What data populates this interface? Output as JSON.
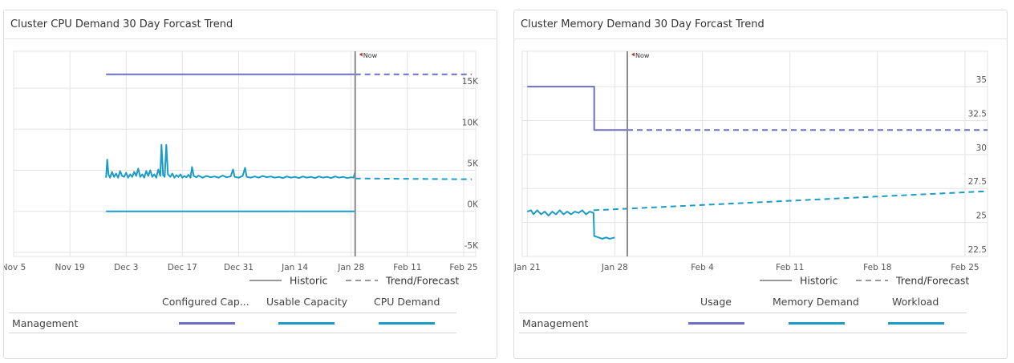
{
  "colors": {
    "purple": "#6c6fc6",
    "teal": "#1a9cc9",
    "grid": "#e3e3e3",
    "now_line": "#8a8a8a",
    "now_marker": "#c0392b"
  },
  "cpu_panel": {
    "title": "Cluster CPU Demand 30 Day Forcast Trend",
    "legend": {
      "historic": "Historic",
      "forecast": "Trend/Forecast"
    },
    "table": {
      "columns": [
        "Configured Cap...",
        "Usable Capacity",
        "CPU Demand"
      ],
      "rows": [
        {
          "label": "Management",
          "swatches": [
            "#6c6fc6",
            "#1a9cc9",
            "#1a9cc9"
          ]
        }
      ]
    }
  },
  "mem_panel": {
    "title": "Cluster Memory Demand 30 Day Forcast Trend",
    "legend": {
      "historic": "Historic",
      "forecast": "Trend/Forecast"
    },
    "table": {
      "columns": [
        "Usage",
        "Memory Demand",
        "Workload"
      ],
      "rows": [
        {
          "label": "Management",
          "swatches": [
            "#6c6fc6",
            "#1a9cc9",
            "#1a9cc9"
          ]
        }
      ]
    }
  },
  "chart_data": [
    {
      "type": "line",
      "title": "Cluster CPU Demand 30 Day Forcast Trend",
      "now_label": "Now",
      "now_x": 85,
      "x_ticks": [
        {
          "x": 0,
          "label": "Nov 5"
        },
        {
          "x": 14,
          "label": "Nov 19"
        },
        {
          "x": 28,
          "label": "Dec 3"
        },
        {
          "x": 42,
          "label": "Dec 17"
        },
        {
          "x": 56,
          "label": "Dec 31"
        },
        {
          "x": 70,
          "label": "Jan 14"
        },
        {
          "x": 84,
          "label": "Jan 28"
        },
        {
          "x": 98,
          "label": "Feb 11"
        },
        {
          "x": 112,
          "label": "Feb 25"
        }
      ],
      "y_ticks": [
        {
          "y": 15000,
          "label": "15K"
        },
        {
          "y": 10000,
          "label": "10K"
        },
        {
          "y": 5000,
          "label": "5K"
        },
        {
          "y": 0,
          "label": "0K"
        },
        {
          "y": -5000,
          "label": "-5K"
        }
      ],
      "xlim": [
        0,
        115
      ],
      "ylim": [
        -5500,
        19500
      ],
      "series": [
        {
          "color": "#6c6fc6",
          "historic": [
            [
              23,
              16700
            ],
            [
              85,
              16700
            ]
          ],
          "forecast": [
            [
              85,
              16700
            ],
            [
              114,
              16700
            ]
          ]
        },
        {
          "color": "#1a9cc9",
          "historic": [
            [
              23,
              0
            ],
            [
              85,
              0
            ]
          ],
          "forecast": []
        },
        {
          "color": "#1a9cc9",
          "historic": [
            [
              23,
              4100
            ],
            [
              23.3,
              6300
            ],
            [
              23.6,
              4500
            ],
            [
              24,
              4100
            ],
            [
              24.5,
              4800
            ],
            [
              25,
              4200
            ],
            [
              25.5,
              4600
            ],
            [
              26,
              4100
            ],
            [
              26.5,
              4900
            ],
            [
              27,
              4300
            ],
            [
              27.5,
              4200
            ],
            [
              28,
              4700
            ],
            [
              28.5,
              4100
            ],
            [
              29,
              4500
            ],
            [
              29.5,
              4200
            ],
            [
              30,
              4800
            ],
            [
              30.5,
              4300
            ],
            [
              31,
              5200
            ],
            [
              31.5,
              4200
            ],
            [
              32,
              4500
            ],
            [
              32.5,
              4100
            ],
            [
              33,
              4900
            ],
            [
              33.5,
              4300
            ],
            [
              34,
              5000
            ],
            [
              34.5,
              4200
            ],
            [
              35,
              4500
            ],
            [
              35.5,
              4100
            ],
            [
              36,
              5100
            ],
            [
              36.5,
              4300
            ],
            [
              36.8,
              8100
            ],
            [
              37.2,
              4400
            ],
            [
              37.6,
              4200
            ],
            [
              38,
              8100
            ],
            [
              38.4,
              4500
            ],
            [
              39,
              4200
            ],
            [
              39.5,
              4600
            ],
            [
              40,
              4100
            ],
            [
              40.5,
              4400
            ],
            [
              41,
              4200
            ],
            [
              41.5,
              4500
            ],
            [
              42,
              4100
            ],
            [
              42.5,
              4300
            ],
            [
              43,
              4150
            ],
            [
              43.5,
              4450
            ],
            [
              44,
              4100
            ],
            [
              44.4,
              5400
            ],
            [
              44.8,
              4300
            ],
            [
              45.5,
              4150
            ],
            [
              46,
              4350
            ],
            [
              47,
              4100
            ],
            [
              48,
              4300
            ],
            [
              49,
              4150
            ],
            [
              50,
              4250
            ],
            [
              51,
              4100
            ],
            [
              52,
              4350
            ],
            [
              53,
              4150
            ],
            [
              54,
              4250
            ],
            [
              54.6,
              5100
            ],
            [
              55,
              4200
            ],
            [
              56,
              4100
            ],
            [
              57,
              4300
            ],
            [
              57.6,
              5300
            ],
            [
              58,
              4200
            ],
            [
              59,
              4100
            ],
            [
              60,
              4250
            ],
            [
              61,
              4100
            ],
            [
              62,
              4300
            ],
            [
              63,
              4150
            ],
            [
              64,
              4250
            ],
            [
              65,
              4100
            ],
            [
              66,
              4200
            ],
            [
              67,
              4050
            ],
            [
              68,
              4250
            ],
            [
              69,
              4100
            ],
            [
              70,
              4200
            ],
            [
              71,
              4050
            ],
            [
              72,
              4250
            ],
            [
              73,
              4100
            ],
            [
              74,
              4200
            ],
            [
              75,
              4050
            ],
            [
              76,
              4250
            ],
            [
              77,
              4100
            ],
            [
              78,
              4200
            ],
            [
              79,
              4050
            ],
            [
              80,
              4250
            ],
            [
              81,
              4100
            ],
            [
              82,
              4200
            ],
            [
              83,
              4050
            ],
            [
              84,
              4150
            ],
            [
              84.6,
              4100
            ],
            [
              85,
              4800
            ]
          ],
          "forecast": [
            [
              85,
              4000
            ],
            [
              114,
              3900
            ]
          ]
        }
      ]
    },
    {
      "type": "line",
      "title": "Cluster Memory Demand 30 Day Forcast Trend",
      "now_label": "Now",
      "now_x": 8,
      "x_ticks": [
        {
          "x": 0,
          "label": "Jan 21"
        },
        {
          "x": 7,
          "label": "Jan 28"
        },
        {
          "x": 14,
          "label": "Feb 4"
        },
        {
          "x": 21,
          "label": "Feb 11"
        },
        {
          "x": 28,
          "label": "Feb 18"
        },
        {
          "x": 35,
          "label": "Feb 25"
        }
      ],
      "y_ticks": [
        {
          "y": 35,
          "label": "35"
        },
        {
          "y": 32.5,
          "label": "32.5"
        },
        {
          "y": 30,
          "label": "30"
        },
        {
          "y": 27.5,
          "label": "27.5"
        },
        {
          "y": 25,
          "label": "25"
        },
        {
          "y": 22.5,
          "label": "22.5"
        }
      ],
      "xlim": [
        -0.4,
        36.8
      ],
      "ylim": [
        22.5,
        37.6
      ],
      "series": [
        {
          "color": "#6c6fc6",
          "historic": [
            [
              0,
              35.0
            ],
            [
              5.35,
              35.0
            ],
            [
              5.35,
              31.8
            ],
            [
              8,
              31.8
            ]
          ],
          "forecast": [
            [
              8,
              31.8
            ],
            [
              36.8,
              31.8
            ]
          ]
        },
        {
          "color": "#1a9cc9",
          "historic": [
            [
              0,
              25.8
            ],
            [
              0.3,
              25.9
            ],
            [
              0.5,
              25.6
            ],
            [
              0.8,
              25.9
            ],
            [
              1.1,
              25.6
            ],
            [
              1.4,
              25.8
            ],
            [
              1.7,
              25.5
            ],
            [
              2.0,
              25.8
            ],
            [
              2.3,
              25.6
            ],
            [
              2.6,
              25.9
            ],
            [
              2.9,
              25.6
            ],
            [
              3.2,
              25.8
            ],
            [
              3.5,
              25.6
            ],
            [
              3.8,
              25.8
            ],
            [
              4.1,
              25.7
            ],
            [
              4.4,
              25.9
            ],
            [
              4.7,
              25.6
            ],
            [
              5.0,
              25.8
            ],
            [
              5.3,
              25.7
            ],
            [
              5.35,
              24.0
            ],
            [
              5.7,
              23.9
            ],
            [
              6.0,
              23.8
            ],
            [
              6.3,
              23.9
            ],
            [
              6.6,
              23.8
            ],
            [
              7.0,
              23.9
            ]
          ],
          "forecast": [
            [
              5.3,
              25.9
            ],
            [
              36.8,
              27.3
            ]
          ]
        }
      ]
    }
  ]
}
